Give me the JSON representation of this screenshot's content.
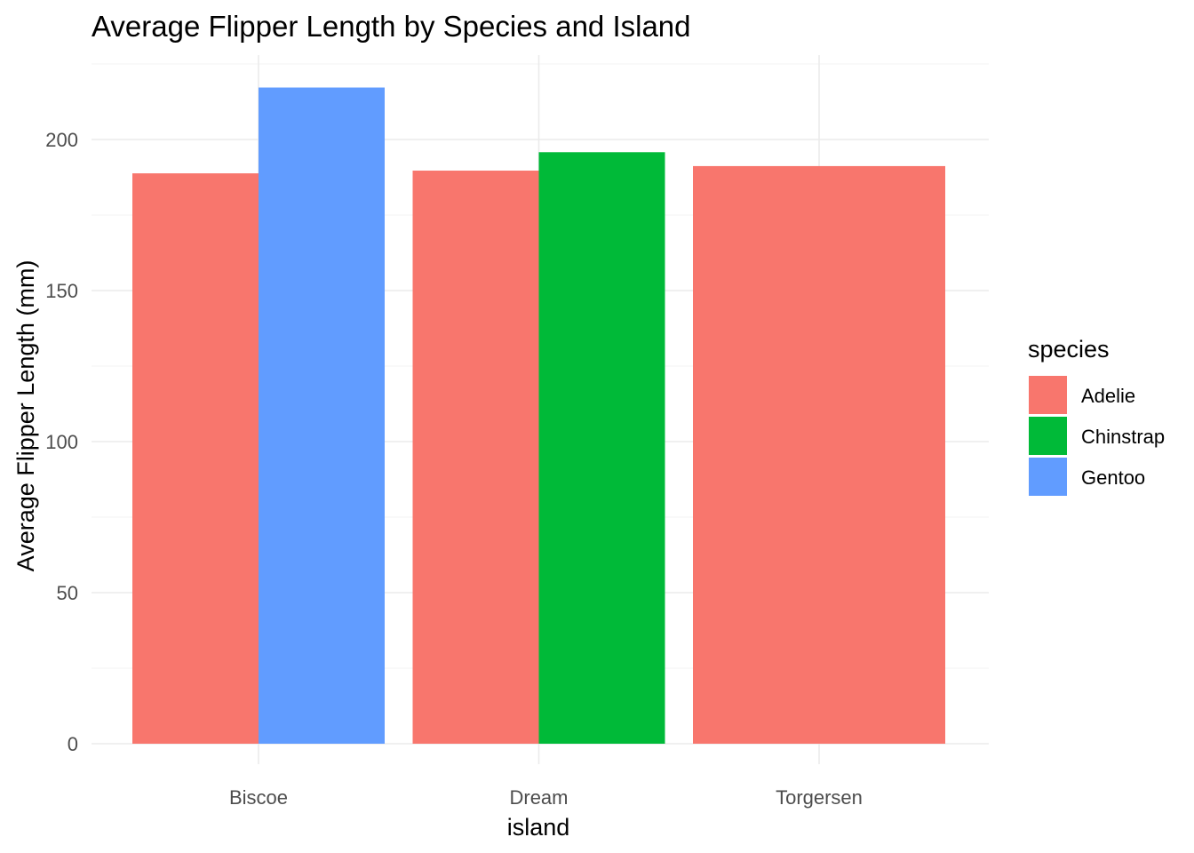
{
  "chart_data": {
    "type": "bar",
    "title": "Average Flipper Length by Species and Island",
    "xlabel": "island",
    "ylabel": "Average Flipper Length (mm)",
    "categories": [
      "Biscoe",
      "Dream",
      "Torgersen"
    ],
    "series": [
      {
        "name": "Adelie",
        "color": "#F8766D",
        "values": [
          188.8,
          189.7,
          191.2
        ]
      },
      {
        "name": "Chinstrap",
        "color": "#00BA38",
        "values": [
          null,
          195.8,
          null
        ]
      },
      {
        "name": "Gentoo",
        "color": "#619CFF",
        "values": [
          217.2,
          null,
          null
        ]
      }
    ],
    "ylim": [
      0,
      225
    ],
    "yticks": [
      0,
      50,
      100,
      150,
      200
    ],
    "grid": true,
    "bar_position": "dodge",
    "legend": {
      "title": "species",
      "position": "right"
    }
  }
}
